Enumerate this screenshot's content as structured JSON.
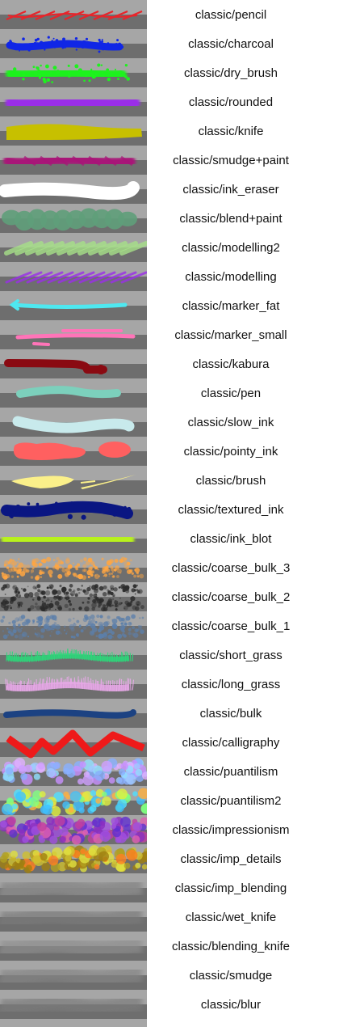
{
  "brushes": [
    {
      "label": "classic/pencil",
      "icon": "pencil-stroke-icon",
      "color": "#e8242a"
    },
    {
      "label": "classic/charcoal",
      "icon": "charcoal-stroke-icon",
      "color": "#1026e6"
    },
    {
      "label": "classic/dry_brush",
      "icon": "dry-brush-stroke-icon",
      "color": "#1ef21e"
    },
    {
      "label": "classic/rounded",
      "icon": "rounded-stroke-icon",
      "color": "#9a2ee8"
    },
    {
      "label": "classic/knife",
      "icon": "knife-stroke-icon",
      "color": "#c7c000"
    },
    {
      "label": "classic/smudge+paint",
      "icon": "smudge-paint-stroke-icon",
      "color": "#a81478"
    },
    {
      "label": "classic/ink_eraser",
      "icon": "ink-eraser-stroke-icon",
      "color": "#ffffff"
    },
    {
      "label": "classic/blend+paint",
      "icon": "blend-paint-stroke-icon",
      "color": "#5f9e7a"
    },
    {
      "label": "classic/modelling2",
      "icon": "modelling2-stroke-icon",
      "color": "#a6e088"
    },
    {
      "label": "classic/modelling",
      "icon": "modelling-stroke-icon",
      "color": "#9a2ee8"
    },
    {
      "label": "classic/marker_fat",
      "icon": "marker-fat-stroke-icon",
      "color": "#4ee8f0"
    },
    {
      "label": "classic/marker_small",
      "icon": "marker-small-stroke-icon",
      "color": "#ff74b8"
    },
    {
      "label": "classic/kabura",
      "icon": "kabura-stroke-icon",
      "color": "#8a0a12"
    },
    {
      "label": "classic/pen",
      "icon": "pen-stroke-icon",
      "color": "#7cd0bc"
    },
    {
      "label": "classic/slow_ink",
      "icon": "slow-ink-stroke-icon",
      "color": "#c8eaec"
    },
    {
      "label": "classic/pointy_ink",
      "icon": "pointy-ink-stroke-icon",
      "color": "#ff6060"
    },
    {
      "label": "classic/brush",
      "icon": "brush-stroke-icon",
      "color": "#fbf08a"
    },
    {
      "label": "classic/textured_ink",
      "icon": "textured-ink-stroke-icon",
      "color": "#0a1682"
    },
    {
      "label": "classic/ink_blot",
      "icon": "ink-blot-stroke-icon",
      "color": "#b8f21e"
    },
    {
      "label": "classic/coarse_bulk_3",
      "icon": "coarse-bulk-3-stroke-icon",
      "color": "#ffa642"
    },
    {
      "label": "classic/coarse_bulk_2",
      "icon": "coarse-bulk-2-stroke-icon",
      "color": "#2a2a2a"
    },
    {
      "label": "classic/coarse_bulk_1",
      "icon": "coarse-bulk-1-stroke-icon",
      "color": "#5c7faa"
    },
    {
      "label": "classic/short_grass",
      "icon": "short-grass-stroke-icon",
      "color": "#2ed67a"
    },
    {
      "label": "classic/long_grass",
      "icon": "long-grass-stroke-icon",
      "color": "#e8a8e8"
    },
    {
      "label": "classic/bulk",
      "icon": "bulk-stroke-icon",
      "color": "#1c4282"
    },
    {
      "label": "classic/calligraphy",
      "icon": "calligraphy-stroke-icon",
      "color": "#ee1a1a"
    },
    {
      "label": "classic/puantilism",
      "icon": "puantilism-stroke-icon",
      "color": "#9a9ae8"
    },
    {
      "label": "classic/puantilism2",
      "icon": "puantilism2-stroke-icon",
      "color": "#c0e040"
    },
    {
      "label": "classic/impressionism",
      "icon": "impressionism-stroke-icon",
      "color": "#8a3ac0"
    },
    {
      "label": "classic/imp_details",
      "icon": "imp-details-stroke-icon",
      "color": "#b0a020"
    },
    {
      "label": "classic/imp_blending",
      "icon": "imp-blending-stroke-icon",
      "color": "#8a8a8a"
    },
    {
      "label": "classic/wet_knife",
      "icon": "wet-knife-stroke-icon",
      "color": "#7a7a7a"
    },
    {
      "label": "classic/blending_knife",
      "icon": "blending-knife-stroke-icon",
      "color": "#8e8e8e"
    },
    {
      "label": "classic/smudge",
      "icon": "smudge-stroke-icon",
      "color": "#858585"
    },
    {
      "label": "classic/blur",
      "icon": "blur-stroke-icon",
      "color": "#7c7c7c"
    }
  ]
}
